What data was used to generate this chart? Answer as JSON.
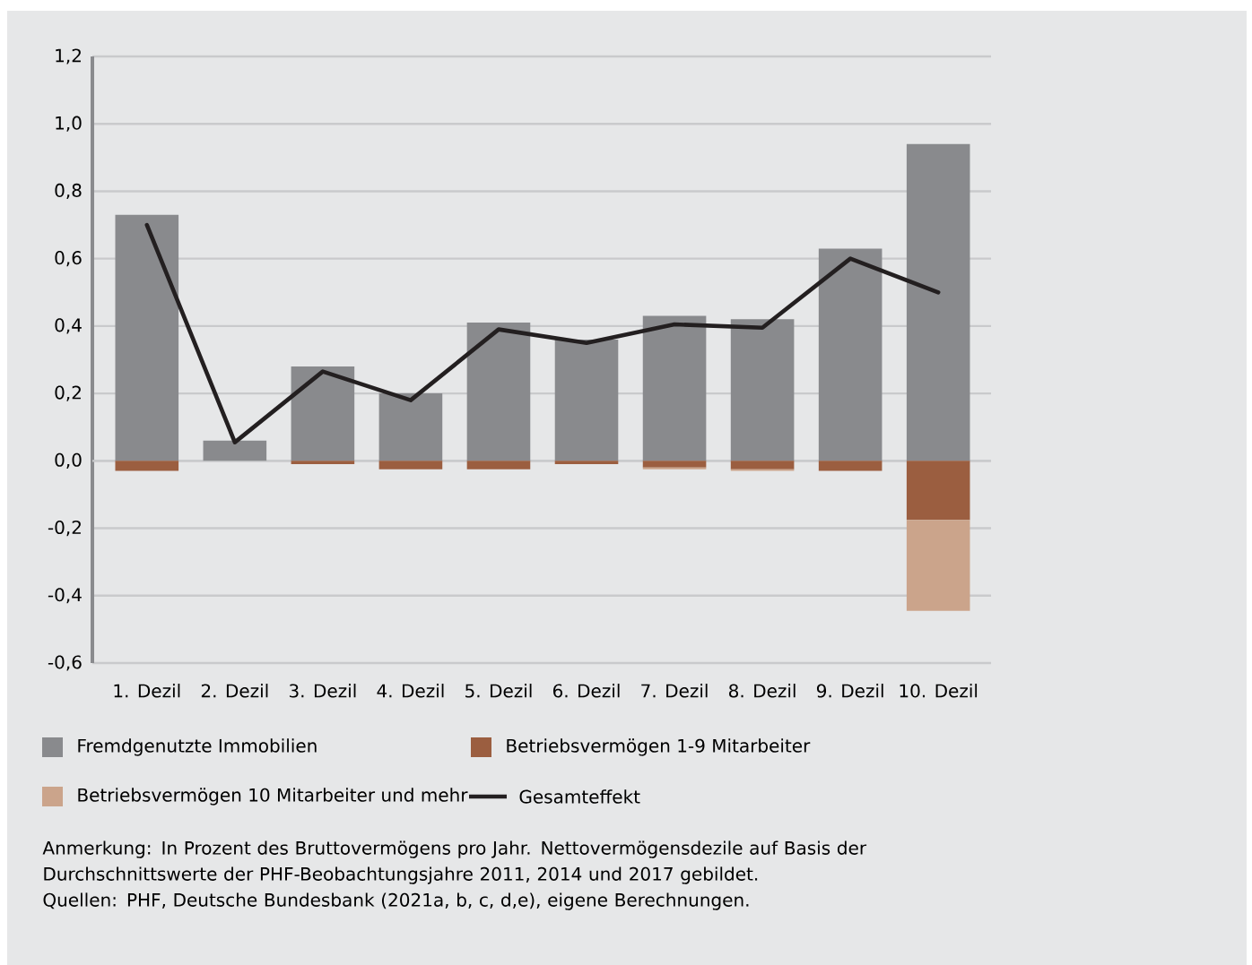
{
  "chart_data": {
    "type": "bar",
    "stacked": true,
    "categories": [
      "1. Dezil",
      "2. Dezil",
      "3. Dezil",
      "4. Dezil",
      "5. Dezil",
      "6. Dezil",
      "7. Dezil",
      "8. Dezil",
      "9. Dezil",
      "10. Dezil"
    ],
    "series": [
      {
        "name": "Fremdgenutzte Immobilien",
        "color": "#898a8d",
        "values": [
          0.73,
          0.06,
          0.28,
          0.2,
          0.41,
          0.36,
          0.43,
          0.42,
          0.63,
          0.94
        ]
      },
      {
        "name": "Betriebsvermögen 1-9 Mitarbeiter",
        "color": "#9b5e40",
        "values": [
          -0.03,
          0,
          -0.01,
          -0.025,
          -0.025,
          -0.01,
          -0.02,
          -0.025,
          -0.03,
          -0.175
        ]
      },
      {
        "name": "Betriebsvermögen 10 Mitarbeiter und mehr",
        "color": "#cba48b",
        "values": [
          0,
          0,
          0,
          0,
          0,
          0,
          -0.005,
          -0.005,
          0,
          -0.27
        ]
      },
      {
        "name": "Gesamteffekt",
        "type": "line",
        "color": "#231f20",
        "values": [
          0.7,
          0.055,
          0.265,
          0.18,
          0.39,
          0.35,
          0.405,
          0.395,
          0.6,
          0.5
        ]
      }
    ],
    "ylim": [
      -0.6,
      1.2
    ],
    "yticks": [
      {
        "value": -0.6,
        "label": "-0,6"
      },
      {
        "value": -0.4,
        "label": "-0,4"
      },
      {
        "value": -0.2,
        "label": "-0,2"
      },
      {
        "value": 0,
        "label": "0,0"
      },
      {
        "value": 0.2,
        "label": "0,2"
      },
      {
        "value": 0.4,
        "label": "0,4"
      },
      {
        "value": 0.6,
        "label": "0,6"
      },
      {
        "value": 0.8,
        "label": "0,8"
      },
      {
        "value": 1.0,
        "label": "1,0"
      },
      {
        "value": 1.2,
        "label": "1,2"
      }
    ],
    "grid": "y",
    "legend": "bottom",
    "annotations": [
      "Anmerkung: In Prozent des Bruttovermögens pro Jahr. Nettovermögensdezile auf Basis der Durchschnittswerte der PHF-Beobachtungsjahre 2011, 2014 und 2017 gebildet.",
      "Quellen: PHF, Deutsche Bundesbank (2021a, b, c, d,e), eigene Berechnungen."
    ]
  }
}
